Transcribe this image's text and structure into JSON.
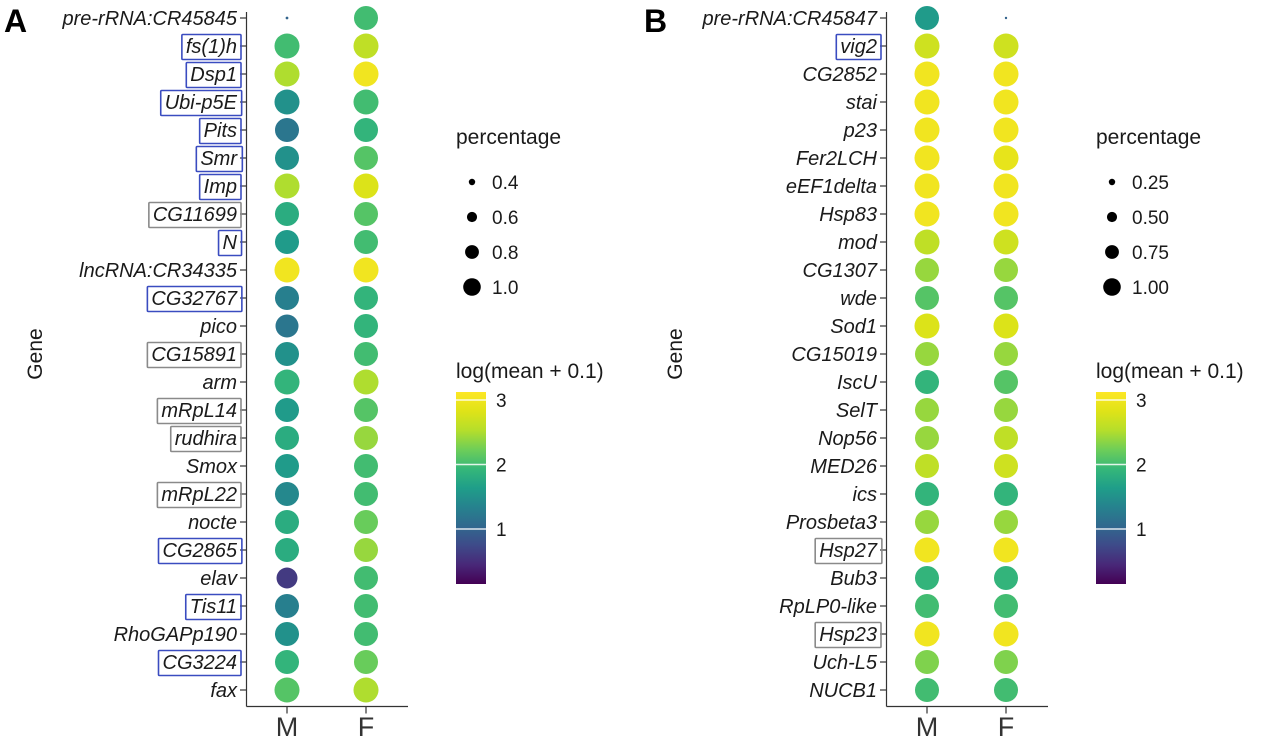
{
  "colors": {
    "background": "#ffffff",
    "axis": "#333333",
    "text": "#1a1a1a",
    "box_blue": "#3a4cc0",
    "box_gray": "#8a8a8a"
  },
  "chart_data": [
    {
      "type": "scatter",
      "subtype": "dotplot",
      "panel_label": "A",
      "ylabel": "Gene",
      "x_categories": [
        "M",
        "F"
      ],
      "size_legend": {
        "title": "percentage",
        "values": [
          0.4,
          0.6,
          0.8,
          1.0
        ],
        "labels": [
          "0.4",
          "0.6",
          "0.8",
          "1.0"
        ]
      },
      "color_legend": {
        "title": "log(mean + 0.1)",
        "tick_values": [
          3,
          2,
          1
        ],
        "tick_labels": [
          "3",
          "2",
          "1"
        ],
        "palette": "viridis",
        "value_range": [
          0.15,
          3.12
        ]
      },
      "rows": [
        {
          "gene": "pre-rRNA:CR45845",
          "box": "none",
          "M": {
            "percentage": 0.05,
            "log_mean": 1.0
          },
          "F": {
            "percentage": 0.9,
            "log_mean": 2.0
          }
        },
        {
          "gene": "fs(1)h",
          "box": "blue",
          "M": {
            "percentage": 0.95,
            "log_mean": 2.0
          },
          "F": {
            "percentage": 0.95,
            "log_mean": 2.6
          }
        },
        {
          "gene": "Dsp1",
          "box": "blue",
          "M": {
            "percentage": 0.95,
            "log_mean": 2.5
          },
          "F": {
            "percentage": 0.95,
            "log_mean": 3.0
          }
        },
        {
          "gene": "Ubi-p5E",
          "box": "blue",
          "M": {
            "percentage": 0.95,
            "log_mean": 1.5
          },
          "F": {
            "percentage": 0.95,
            "log_mean": 2.0
          }
        },
        {
          "gene": "Pits",
          "box": "blue",
          "M": {
            "percentage": 0.9,
            "log_mean": 1.2
          },
          "F": {
            "percentage": 0.9,
            "log_mean": 1.9
          }
        },
        {
          "gene": "Smr",
          "box": "blue",
          "M": {
            "percentage": 0.9,
            "log_mean": 1.5
          },
          "F": {
            "percentage": 0.9,
            "log_mean": 2.1
          }
        },
        {
          "gene": "Imp",
          "box": "blue",
          "M": {
            "percentage": 0.95,
            "log_mean": 2.5
          },
          "F": {
            "percentage": 0.95,
            "log_mean": 2.8
          }
        },
        {
          "gene": "CG11699",
          "box": "gray",
          "M": {
            "percentage": 0.9,
            "log_mean": 1.8
          },
          "F": {
            "percentage": 0.9,
            "log_mean": 2.1
          }
        },
        {
          "gene": "N",
          "box": "blue",
          "M": {
            "percentage": 0.9,
            "log_mean": 1.6
          },
          "F": {
            "percentage": 0.9,
            "log_mean": 2.0
          }
        },
        {
          "gene": "lncRNA:CR34335",
          "box": "none",
          "M": {
            "percentage": 0.95,
            "log_mean": 3.0
          },
          "F": {
            "percentage": 0.95,
            "log_mean": 3.0
          }
        },
        {
          "gene": "CG32767",
          "box": "blue",
          "M": {
            "percentage": 0.9,
            "log_mean": 1.3
          },
          "F": {
            "percentage": 0.9,
            "log_mean": 1.9
          }
        },
        {
          "gene": "pico",
          "box": "none",
          "M": {
            "percentage": 0.85,
            "log_mean": 1.2
          },
          "F": {
            "percentage": 0.9,
            "log_mean": 1.9
          }
        },
        {
          "gene": "CG15891",
          "box": "gray",
          "M": {
            "percentage": 0.9,
            "log_mean": 1.5
          },
          "F": {
            "percentage": 0.9,
            "log_mean": 2.0
          }
        },
        {
          "gene": "arm",
          "box": "none",
          "M": {
            "percentage": 0.95,
            "log_mean": 1.9
          },
          "F": {
            "percentage": 0.95,
            "log_mean": 2.5
          }
        },
        {
          "gene": "mRpL14",
          "box": "gray",
          "M": {
            "percentage": 0.9,
            "log_mean": 1.6
          },
          "F": {
            "percentage": 0.9,
            "log_mean": 2.1
          }
        },
        {
          "gene": "rudhira",
          "box": "gray",
          "M": {
            "percentage": 0.9,
            "log_mean": 1.8
          },
          "F": {
            "percentage": 0.9,
            "log_mean": 2.4
          }
        },
        {
          "gene": "Smox",
          "box": "none",
          "M": {
            "percentage": 0.9,
            "log_mean": 1.6
          },
          "F": {
            "percentage": 0.9,
            "log_mean": 2.0
          }
        },
        {
          "gene": "mRpL22",
          "box": "gray",
          "M": {
            "percentage": 0.9,
            "log_mean": 1.4
          },
          "F": {
            "percentage": 0.9,
            "log_mean": 2.0
          }
        },
        {
          "gene": "nocte",
          "box": "none",
          "M": {
            "percentage": 0.9,
            "log_mean": 1.8
          },
          "F": {
            "percentage": 0.9,
            "log_mean": 2.2
          }
        },
        {
          "gene": "CG2865",
          "box": "blue",
          "M": {
            "percentage": 0.9,
            "log_mean": 1.8
          },
          "F": {
            "percentage": 0.9,
            "log_mean": 2.4
          }
        },
        {
          "gene": "elav",
          "box": "none",
          "M": {
            "percentage": 0.75,
            "log_mean": 0.6
          },
          "F": {
            "percentage": 0.9,
            "log_mean": 2.0
          }
        },
        {
          "gene": "Tis11",
          "box": "blue",
          "M": {
            "percentage": 0.9,
            "log_mean": 1.3
          },
          "F": {
            "percentage": 0.9,
            "log_mean": 2.0
          }
        },
        {
          "gene": "RhoGAPp190",
          "box": "none",
          "M": {
            "percentage": 0.9,
            "log_mean": 1.5
          },
          "F": {
            "percentage": 0.9,
            "log_mean": 2.0
          }
        },
        {
          "gene": "CG3224",
          "box": "blue",
          "M": {
            "percentage": 0.9,
            "log_mean": 1.9
          },
          "F": {
            "percentage": 0.9,
            "log_mean": 2.2
          }
        },
        {
          "gene": "fax",
          "box": "none",
          "M": {
            "percentage": 0.95,
            "log_mean": 2.1
          },
          "F": {
            "percentage": 0.95,
            "log_mean": 2.5
          }
        }
      ]
    },
    {
      "type": "scatter",
      "subtype": "dotplot",
      "panel_label": "B",
      "ylabel": "Gene",
      "x_categories": [
        "M",
        "F"
      ],
      "size_legend": {
        "title": "percentage",
        "values": [
          0.25,
          0.5,
          0.75,
          1.0
        ],
        "labels": [
          "0.25",
          "0.50",
          "0.75",
          "1.00"
        ]
      },
      "color_legend": {
        "title": "log(mean + 0.1)",
        "tick_values": [
          3,
          2,
          1
        ],
        "tick_labels": [
          "3",
          "2",
          "1"
        ],
        "palette": "viridis",
        "value_range": [
          0.15,
          3.12
        ]
      },
      "rows": [
        {
          "gene": "pre-rRNA:CR45847",
          "box": "none",
          "M": {
            "percentage": 0.9,
            "log_mean": 1.6
          },
          "F": {
            "percentage": 0.03,
            "log_mean": 1.0
          }
        },
        {
          "gene": "vig2",
          "box": "blue",
          "M": {
            "percentage": 0.95,
            "log_mean": 2.7
          },
          "F": {
            "percentage": 0.95,
            "log_mean": 2.7
          }
        },
        {
          "gene": "CG2852",
          "box": "none",
          "M": {
            "percentage": 0.95,
            "log_mean": 3.0
          },
          "F": {
            "percentage": 0.95,
            "log_mean": 3.0
          }
        },
        {
          "gene": "stai",
          "box": "none",
          "M": {
            "percentage": 0.95,
            "log_mean": 3.0
          },
          "F": {
            "percentage": 0.95,
            "log_mean": 3.0
          }
        },
        {
          "gene": "p23",
          "box": "none",
          "M": {
            "percentage": 0.95,
            "log_mean": 3.0
          },
          "F": {
            "percentage": 0.95,
            "log_mean": 3.0
          }
        },
        {
          "gene": "Fer2LCH",
          "box": "none",
          "M": {
            "percentage": 0.95,
            "log_mean": 3.0
          },
          "F": {
            "percentage": 0.95,
            "log_mean": 2.9
          }
        },
        {
          "gene": "eEF1delta",
          "box": "none",
          "M": {
            "percentage": 0.95,
            "log_mean": 3.0
          },
          "F": {
            "percentage": 0.95,
            "log_mean": 3.0
          }
        },
        {
          "gene": "Hsp83",
          "box": "none",
          "M": {
            "percentage": 0.95,
            "log_mean": 3.0
          },
          "F": {
            "percentage": 0.95,
            "log_mean": 3.0
          }
        },
        {
          "gene": "mod",
          "box": "none",
          "M": {
            "percentage": 0.95,
            "log_mean": 2.6
          },
          "F": {
            "percentage": 0.95,
            "log_mean": 2.7
          }
        },
        {
          "gene": "CG1307",
          "box": "none",
          "M": {
            "percentage": 0.9,
            "log_mean": 2.4
          },
          "F": {
            "percentage": 0.9,
            "log_mean": 2.4
          }
        },
        {
          "gene": "wde",
          "box": "none",
          "M": {
            "percentage": 0.9,
            "log_mean": 2.1
          },
          "F": {
            "percentage": 0.9,
            "log_mean": 2.1
          }
        },
        {
          "gene": "Sod1",
          "box": "none",
          "M": {
            "percentage": 0.95,
            "log_mean": 2.8
          },
          "F": {
            "percentage": 0.95,
            "log_mean": 2.8
          }
        },
        {
          "gene": "CG15019",
          "box": "none",
          "M": {
            "percentage": 0.9,
            "log_mean": 2.4
          },
          "F": {
            "percentage": 0.9,
            "log_mean": 2.4
          }
        },
        {
          "gene": "IscU",
          "box": "none",
          "M": {
            "percentage": 0.9,
            "log_mean": 1.9
          },
          "F": {
            "percentage": 0.9,
            "log_mean": 2.1
          }
        },
        {
          "gene": "SelT",
          "box": "none",
          "M": {
            "percentage": 0.9,
            "log_mean": 2.4
          },
          "F": {
            "percentage": 0.9,
            "log_mean": 2.4
          }
        },
        {
          "gene": "Nop56",
          "box": "none",
          "M": {
            "percentage": 0.9,
            "log_mean": 2.4
          },
          "F": {
            "percentage": 0.9,
            "log_mean": 2.6
          }
        },
        {
          "gene": "MED26",
          "box": "none",
          "M": {
            "percentage": 0.9,
            "log_mean": 2.6
          },
          "F": {
            "percentage": 0.9,
            "log_mean": 2.7
          }
        },
        {
          "gene": "ics",
          "box": "none",
          "M": {
            "percentage": 0.9,
            "log_mean": 1.9
          },
          "F": {
            "percentage": 0.9,
            "log_mean": 1.9
          }
        },
        {
          "gene": "Prosbeta3",
          "box": "none",
          "M": {
            "percentage": 0.9,
            "log_mean": 2.4
          },
          "F": {
            "percentage": 0.9,
            "log_mean": 2.4
          }
        },
        {
          "gene": "Hsp27",
          "box": "gray",
          "M": {
            "percentage": 0.95,
            "log_mean": 3.0
          },
          "F": {
            "percentage": 0.95,
            "log_mean": 3.0
          }
        },
        {
          "gene": "Bub3",
          "box": "none",
          "M": {
            "percentage": 0.9,
            "log_mean": 1.9
          },
          "F": {
            "percentage": 0.9,
            "log_mean": 1.9
          }
        },
        {
          "gene": "RpLP0-like",
          "box": "none",
          "M": {
            "percentage": 0.9,
            "log_mean": 2.0
          },
          "F": {
            "percentage": 0.9,
            "log_mean": 2.0
          }
        },
        {
          "gene": "Hsp23",
          "box": "gray",
          "M": {
            "percentage": 0.95,
            "log_mean": 3.0
          },
          "F": {
            "percentage": 0.95,
            "log_mean": 3.0
          }
        },
        {
          "gene": "Uch-L5",
          "box": "none",
          "M": {
            "percentage": 0.9,
            "log_mean": 2.3
          },
          "F": {
            "percentage": 0.9,
            "log_mean": 2.3
          }
        },
        {
          "gene": "NUCB1",
          "box": "none",
          "M": {
            "percentage": 0.9,
            "log_mean": 2.0
          },
          "F": {
            "percentage": 0.9,
            "log_mean": 2.0
          }
        }
      ]
    }
  ]
}
